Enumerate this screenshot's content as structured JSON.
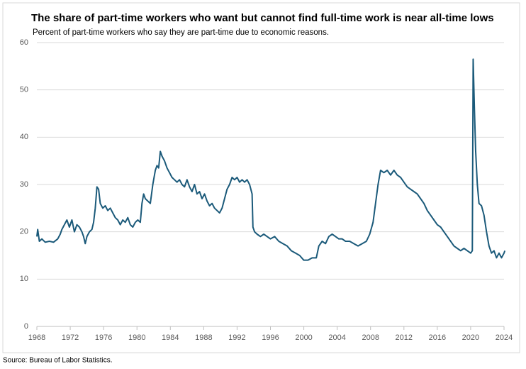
{
  "chart_data": {
    "type": "line",
    "title": "The share  of part-time workers who want but cannot find full-time work is near all-time lows",
    "subtitle": "Percent of part-time workers who say they are part-time due to economic reasons.",
    "source": "Source: Bureau of Labor Statistics.",
    "x": [
      1968.0,
      1968.1,
      1968.3,
      1968.6,
      1969.0,
      1969.5,
      1970.0,
      1970.5,
      1970.8,
      1971.0,
      1971.3,
      1971.6,
      1971.9,
      1972.2,
      1972.5,
      1972.8,
      1973.1,
      1973.4,
      1973.6,
      1973.8,
      1974.0,
      1974.3,
      1974.6,
      1974.8,
      1975.0,
      1975.2,
      1975.4,
      1975.6,
      1975.9,
      1976.2,
      1976.5,
      1976.8,
      1977.1,
      1977.4,
      1977.7,
      1978.0,
      1978.3,
      1978.6,
      1978.9,
      1979.2,
      1979.5,
      1979.8,
      1980.1,
      1980.4,
      1980.6,
      1980.8,
      1981.0,
      1981.3,
      1981.6,
      1981.9,
      1982.2,
      1982.4,
      1982.6,
      1982.8,
      1983.0,
      1983.3,
      1983.6,
      1983.9,
      1984.2,
      1984.5,
      1984.8,
      1985.1,
      1985.4,
      1985.7,
      1986.0,
      1986.3,
      1986.6,
      1986.9,
      1987.2,
      1987.5,
      1987.8,
      1988.1,
      1988.4,
      1988.7,
      1989.0,
      1989.3,
      1989.6,
      1989.9,
      1990.2,
      1990.5,
      1990.8,
      1991.1,
      1991.4,
      1991.7,
      1992.0,
      1992.3,
      1992.6,
      1992.9,
      1993.2,
      1993.5,
      1993.8,
      1993.9,
      1994.1,
      1994.4,
      1994.8,
      1995.2,
      1995.6,
      1996.0,
      1996.5,
      1997.0,
      1997.5,
      1998.0,
      1998.5,
      1999.0,
      1999.5,
      2000.0,
      2000.5,
      2001.0,
      2001.5,
      2001.8,
      2002.2,
      2002.6,
      2003.0,
      2003.4,
      2003.8,
      2004.2,
      2004.6,
      2005.0,
      2005.5,
      2006.0,
      2006.5,
      2007.0,
      2007.5,
      2007.9,
      2008.3,
      2008.6,
      2008.9,
      2009.2,
      2009.6,
      2010.0,
      2010.4,
      2010.8,
      2011.2,
      2011.6,
      2012.0,
      2012.4,
      2012.8,
      2013.2,
      2013.6,
      2014.0,
      2014.4,
      2014.8,
      2015.2,
      2015.6,
      2016.0,
      2016.4,
      2016.8,
      2017.2,
      2017.6,
      2018.0,
      2018.4,
      2018.8,
      2019.2,
      2019.6,
      2020.0,
      2020.2,
      2020.3,
      2020.45,
      2020.6,
      2020.8,
      2021.0,
      2021.3,
      2021.6,
      2021.9,
      2022.2,
      2022.5,
      2022.8,
      2023.1,
      2023.4,
      2023.7,
      2024.0,
      2024.1
    ],
    "series": [
      {
        "color": "#1b5a7a",
        "values": [
          19,
          20.5,
          18,
          18.5,
          17.8,
          18,
          17.8,
          18.5,
          19.5,
          20.5,
          21.5,
          22.5,
          21,
          22.5,
          20,
          21.5,
          21,
          20,
          19,
          17.5,
          19,
          20,
          20.5,
          22,
          25,
          29.5,
          29,
          26,
          25,
          25.5,
          24.5,
          25,
          24,
          23,
          22.5,
          21.5,
          22.5,
          22,
          23,
          21.5,
          21,
          22,
          22.5,
          22,
          26,
          28,
          27,
          26.5,
          26,
          30,
          33,
          34,
          33.5,
          37,
          36,
          35,
          33.5,
          32.5,
          31.5,
          31,
          30.5,
          31,
          30,
          29.5,
          31,
          29.5,
          28.5,
          30,
          28,
          28.5,
          27,
          28,
          26.5,
          25.5,
          26,
          25,
          24.5,
          24,
          25,
          27,
          29,
          30,
          31.5,
          31,
          31.5,
          30.5,
          31,
          30.5,
          31,
          30,
          28,
          21,
          20,
          19.5,
          19,
          19.5,
          19,
          18.5,
          19,
          18,
          17.5,
          17,
          16,
          15.5,
          15,
          14,
          14,
          14.5,
          14.5,
          17,
          18,
          17.5,
          19,
          19.5,
          19,
          18.5,
          18.5,
          18,
          18,
          17.5,
          17,
          17.5,
          18,
          19.5,
          22,
          26,
          30,
          33,
          32.5,
          33,
          32,
          33,
          32,
          31.5,
          30.5,
          29.5,
          29,
          28.5,
          28,
          27,
          26,
          24.5,
          23.5,
          22.5,
          21.5,
          21,
          20,
          19,
          18,
          17,
          16.5,
          16,
          16.5,
          16,
          15.5,
          16,
          56.5,
          46,
          37,
          30,
          26,
          25.5,
          23.5,
          20,
          17,
          15.5,
          16,
          14.5,
          15.5,
          14.5,
          15.5,
          16
        ]
      }
    ],
    "xlim": [
      1968,
      2024
    ],
    "xticks": [
      1968,
      1972,
      1976,
      1980,
      1984,
      1988,
      1992,
      1996,
      2000,
      2004,
      2008,
      2012,
      2016,
      2020,
      2024
    ],
    "ylim": [
      0,
      60
    ],
    "yticks": [
      0,
      10,
      20,
      30,
      40,
      50,
      60
    ],
    "grid": true
  }
}
